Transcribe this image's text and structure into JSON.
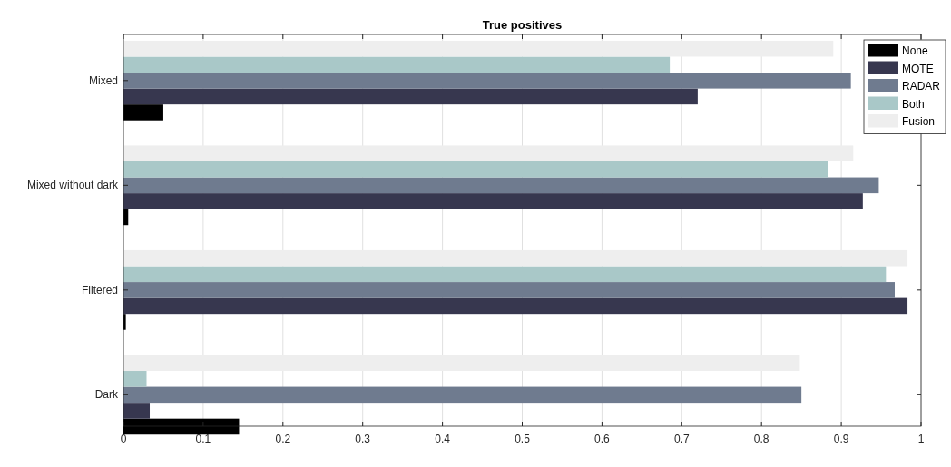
{
  "chart_data": {
    "type": "bar",
    "orientation": "horizontal",
    "title": "True positives",
    "categories": [
      "Mixed",
      "Mixed without dark",
      "Filtered",
      "Dark"
    ],
    "series": [
      {
        "name": "None",
        "color": "#000000",
        "values": [
          0.05,
          0.006,
          0.003,
          0.145
        ]
      },
      {
        "name": "MOTE",
        "color": "#37374f",
        "values": [
          0.72,
          0.927,
          0.983,
          0.033
        ]
      },
      {
        "name": "RADAR",
        "color": "#6f7b8f",
        "values": [
          0.912,
          0.947,
          0.967,
          0.85
        ]
      },
      {
        "name": "Both",
        "color": "#a9c8c8",
        "values": [
          0.685,
          0.883,
          0.956,
          0.029
        ]
      },
      {
        "name": "Fusion",
        "color": "#eeeeee",
        "values": [
          0.89,
          0.915,
          0.983,
          0.848
        ]
      }
    ],
    "xlim": [
      0,
      1
    ],
    "xticks": [
      0,
      0.1,
      0.2,
      0.3,
      0.4,
      0.5,
      0.6,
      0.7,
      0.8,
      0.9,
      1
    ],
    "grid": "x",
    "legend": "top right"
  }
}
